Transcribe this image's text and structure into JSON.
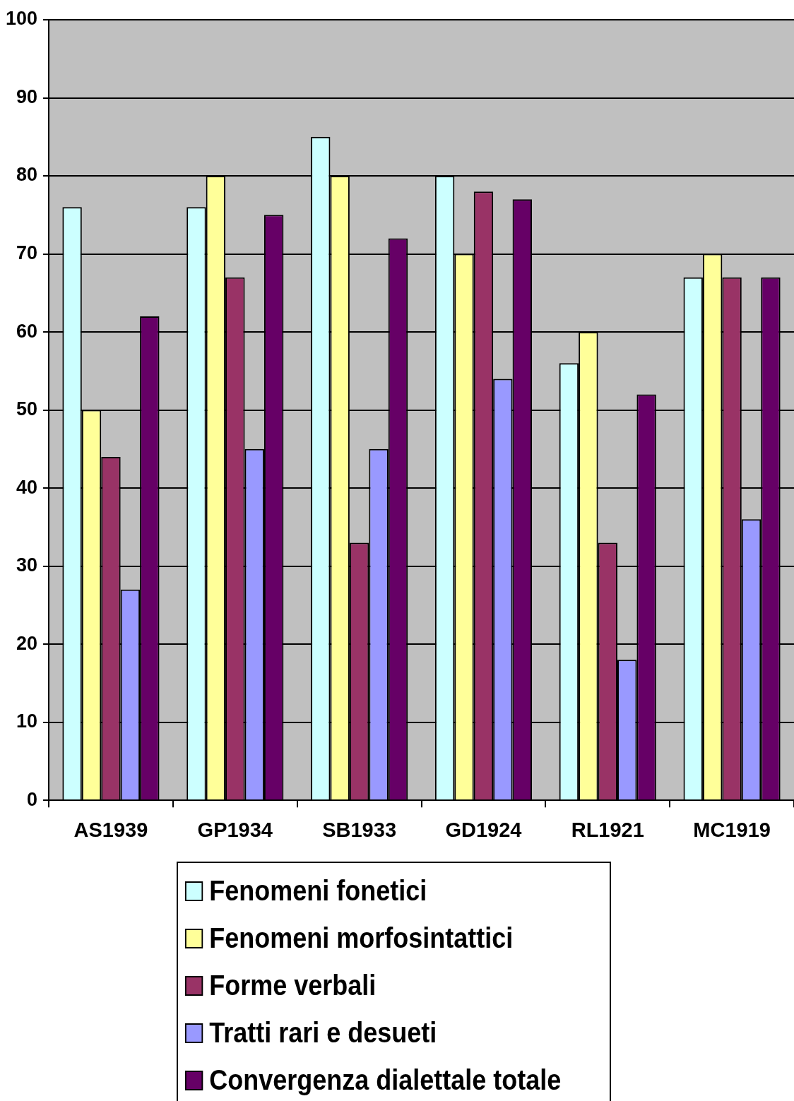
{
  "chart_data": {
    "type": "bar",
    "categories": [
      "AS1939",
      "GP1934",
      "SB1933",
      "GD1924",
      "RL1921",
      "MC1919"
    ],
    "series": [
      {
        "name": "Fenomeni fonetici",
        "color": "#ccffff",
        "values": [
          76,
          76,
          85,
          80,
          56,
          67
        ]
      },
      {
        "name": "Fenomeni morfosintattici",
        "color": "#ffff99",
        "values": [
          50,
          80,
          80,
          70,
          60,
          70
        ]
      },
      {
        "name": "Forme verbali",
        "color": "#993366",
        "values": [
          44,
          67,
          33,
          78,
          33,
          67
        ]
      },
      {
        "name": "Tratti rari e desueti",
        "color": "#9999ff",
        "values": [
          27,
          45,
          45,
          54,
          18,
          36
        ]
      },
      {
        "name": "Convergenza dialettale totale",
        "color": "#660066",
        "values": [
          62,
          75,
          72,
          77,
          52,
          67
        ]
      }
    ],
    "ylim": [
      0,
      100
    ],
    "yticks": [
      0,
      10,
      20,
      30,
      40,
      50,
      60,
      70,
      80,
      90,
      100
    ],
    "grid": "y",
    "legend": "bottom"
  }
}
